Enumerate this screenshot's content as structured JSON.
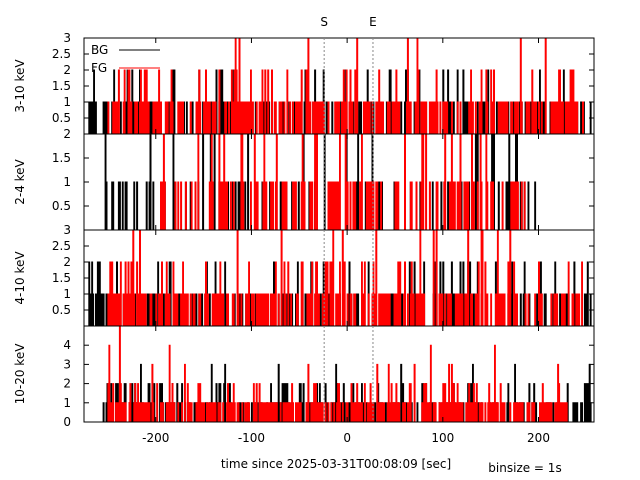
{
  "chart_data": {
    "type": "histogram-step",
    "xlabel": "time since 2025-03-31T00:08:09 [sec]",
    "binsize_label": "binsize = 1s",
    "xlim": [
      -275,
      258
    ],
    "x_ticks": [
      -200,
      -100,
      0,
      100,
      200
    ],
    "markers": [
      {
        "label": "S",
        "x": -24
      },
      {
        "label": "E",
        "x": 27
      }
    ],
    "legend": {
      "placement": "top-left of first panel",
      "entries": [
        {
          "name": "BG",
          "color": "#000000"
        },
        {
          "name": "FG",
          "color": "#ff0000"
        }
      ]
    },
    "panels": [
      {
        "ylabel": "3-10 keV",
        "ylim": [
          0,
          3
        ],
        "y_ticks": [
          0.5,
          1,
          1.5,
          2,
          2.5,
          3
        ],
        "series": [
          {
            "name": "BG",
            "color": "#000000",
            "x_range": [
              -270,
              255
            ],
            "y_max": 2,
            "density": 0.35,
            "seed": 11
          },
          {
            "name": "FG",
            "color": "#ff0000",
            "x_range": [
              -250,
              250
            ],
            "y_max": 3,
            "density": 0.45,
            "seed": 23
          }
        ]
      },
      {
        "ylabel": "2-4 keV",
        "ylim": [
          0,
          2
        ],
        "y_ticks": [
          0.5,
          1,
          1.5,
          2
        ],
        "series": [
          {
            "name": "BG",
            "color": "#000000",
            "x_range": [
              -255,
              205
            ],
            "y_max": 2,
            "density": 0.2,
            "seed": 37
          },
          {
            "name": "FG",
            "color": "#ff0000",
            "x_range": [
              -195,
              195
            ],
            "y_max": 2,
            "density": 0.3,
            "seed": 41
          }
        ]
      },
      {
        "ylabel": "4-10 keV",
        "ylim": [
          0,
          3
        ],
        "y_ticks": [
          0.5,
          1,
          1.5,
          2,
          2.5,
          3
        ],
        "series": [
          {
            "name": "BG",
            "color": "#000000",
            "x_range": [
              -270,
              255
            ],
            "y_max": 2,
            "density": 0.33,
            "seed": 53
          },
          {
            "name": "FG",
            "color": "#ff0000",
            "x_range": [
              -250,
              250
            ],
            "y_max": 3,
            "density": 0.45,
            "seed": 67
          }
        ]
      },
      {
        "ylabel": "10-20 keV",
        "ylim": [
          0,
          5
        ],
        "y_ticks": [
          0,
          1,
          2,
          3,
          4
        ],
        "series": [
          {
            "name": "BG",
            "color": "#000000",
            "x_range": [
              -255,
              255
            ],
            "y_max": 3,
            "density": 0.4,
            "seed": 79
          },
          {
            "name": "FG",
            "color": "#ff0000",
            "x_range": [
              -250,
              230
            ],
            "y_max": 5,
            "density": 0.55,
            "seed": 97
          }
        ]
      }
    ]
  }
}
